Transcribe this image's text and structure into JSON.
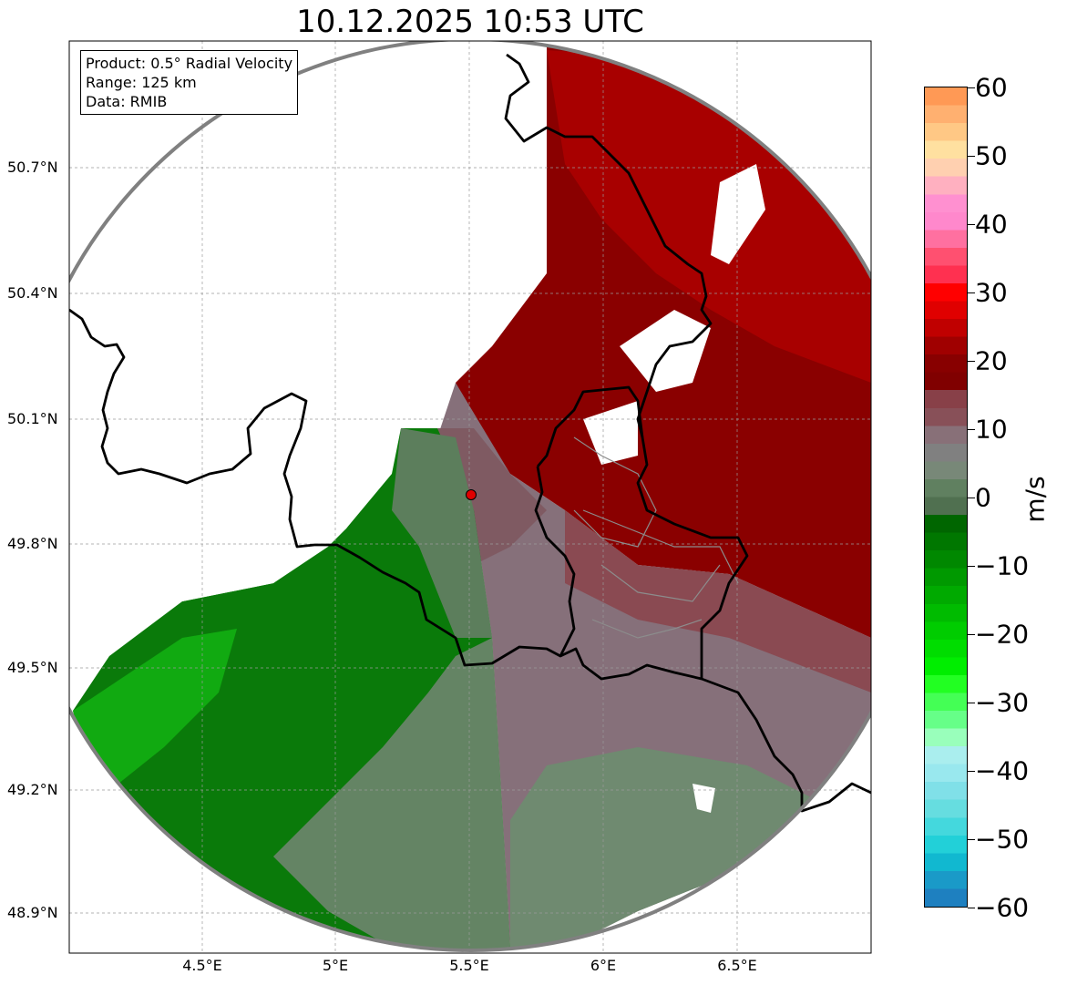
{
  "title": "10.12.2025 10:53 UTC",
  "info_box": {
    "product": "Product: 0.5° Radial Velocity",
    "range": "Range: 125 km",
    "data": "Data: RMIB"
  },
  "axes": {
    "y_labels": [
      "50.7°N",
      "50.4°N",
      "50.1°N",
      "49.8°N",
      "49.5°N",
      "49.2°N",
      "48.9°N"
    ],
    "x_labels": [
      "4.5°E",
      "5°E",
      "5.5°E",
      "6°E",
      "6.5°E"
    ]
  },
  "colorbar": {
    "unit": "m/s",
    "tick_labels": [
      "60",
      "50",
      "40",
      "30",
      "20",
      "10",
      "0",
      "−10",
      "−20",
      "−30",
      "−40",
      "−50",
      "−60"
    ],
    "range": [
      -60,
      60
    ],
    "colors_top_to_bottom": [
      "#ff9955",
      "#ffb070",
      "#ffc885",
      "#ffe0a0",
      "#ffd0b0",
      "#ffb0c0",
      "#ff90d0",
      "#ff88cc",
      "#ff70a0",
      "#ff5070",
      "#ff3050",
      "#ff0000",
      "#e00000",
      "#c00000",
      "#a00000",
      "#880000",
      "#800000",
      "#884048",
      "#885058",
      "#887078",
      "#808080",
      "#788878",
      "#608060",
      "#507050",
      "#006600",
      "#007700",
      "#008800",
      "#009900",
      "#00aa00",
      "#00bb00",
      "#00cc00",
      "#00dd00",
      "#00ee00",
      "#22ff22",
      "#44ff55",
      "#66ff88",
      "#99ffbb",
      "#aaeeee",
      "#99e8ee",
      "#80e0e8",
      "#66dde0",
      "#44d8dd",
      "#22d0d8",
      "#11b8d0",
      "#1a9ac8",
      "#1e80c0"
    ]
  },
  "radar_site_color": "#e00000"
}
